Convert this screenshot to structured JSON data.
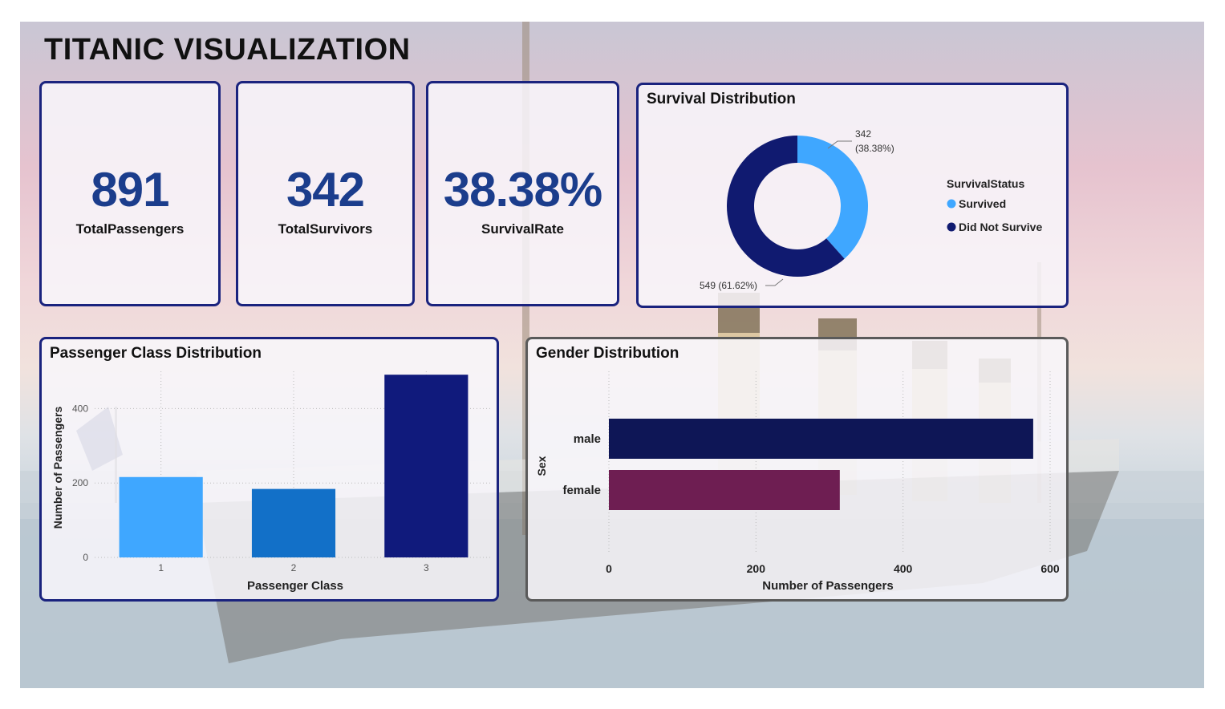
{
  "page_title": "TITANIC VISUALIZATION",
  "kpis": {
    "total_passengers": {
      "value": "891",
      "label": "TotalPassengers"
    },
    "total_survivors": {
      "value": "342",
      "label": "TotalSurvivors"
    },
    "survival_rate": {
      "value": "38.38%",
      "label": "SurvivalRate"
    }
  },
  "survival": {
    "title": "Survival Distribution",
    "legend_title": "SurvivalStatus",
    "survived_label_value": "342",
    "survived_label_pct": "(38.38%)",
    "not_survived_label": "549 (61.62%)"
  },
  "class_chart": {
    "title": "Passenger Class Distribution"
  },
  "gender_chart": {
    "title": "Gender Distribution"
  },
  "colors": {
    "survived": "#3fa7ff",
    "not_survived": "#101a70",
    "class_1": "#3fa7ff",
    "class_2": "#1270c8",
    "class_3": "#101a7c",
    "male": "#0e1656",
    "female": "#6e1e52"
  },
  "chart_data": [
    {
      "type": "pie",
      "title": "Survival Distribution",
      "categories": [
        "Survived",
        "Did Not Survive"
      ],
      "values": [
        342,
        549
      ],
      "labels": [
        "342 (38.38%)",
        "549 (61.62%)"
      ],
      "legend": "right"
    },
    {
      "type": "bar",
      "title": "Passenger Class Distribution",
      "categories": [
        "1",
        "2",
        "3"
      ],
      "values": [
        216,
        184,
        491
      ],
      "xlabel": "Passenger Class",
      "ylabel": "Number of Passengers",
      "yticks": [
        "0",
        "200",
        "400"
      ],
      "ylim": [
        0,
        500
      ],
      "grid": true
    },
    {
      "type": "bar",
      "orientation": "horizontal",
      "title": "Gender Distribution",
      "categories": [
        "male",
        "female"
      ],
      "values": [
        577,
        314
      ],
      "xlabel": "Number of Passengers",
      "ylabel": "Sex",
      "xticks": [
        "0",
        "200",
        "400",
        "600"
      ],
      "xlim": [
        0,
        600
      ],
      "grid": true
    }
  ]
}
